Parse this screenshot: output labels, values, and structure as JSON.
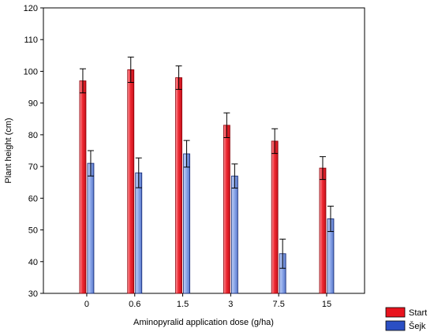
{
  "chart_data": {
    "type": "bar",
    "xlabel": "Aminopyralid application dose (g/ha)",
    "ylabel": "Plant height (cm)",
    "categories": [
      "0",
      "0.6",
      "1.5",
      "3",
      "7.5",
      "15"
    ],
    "ylim": [
      30,
      120
    ],
    "yticks": [
      30,
      40,
      50,
      60,
      70,
      80,
      90,
      100,
      110,
      120
    ],
    "grid": false,
    "legend_position": "bottom-right",
    "series": [
      {
        "name": "Start",
        "color": "#e8141e",
        "values": [
          97,
          100.5,
          98,
          83,
          78,
          69.5
        ],
        "error": [
          3.8,
          4,
          3.7,
          3.9,
          3.9,
          3.6
        ]
      },
      {
        "name": "Šejk",
        "color": "#2b4fc4",
        "values": [
          71,
          68,
          74,
          67,
          42.5,
          53.5
        ],
        "error": [
          4,
          4.7,
          4.2,
          3.8,
          4.6,
          4
        ]
      }
    ]
  }
}
